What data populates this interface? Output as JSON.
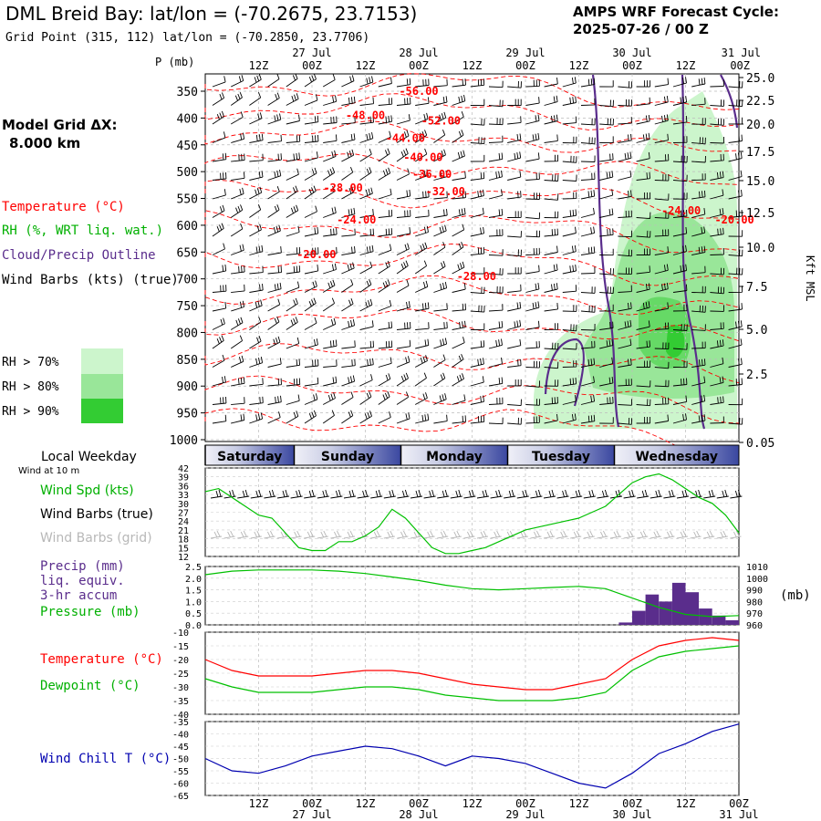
{
  "header": {
    "title": "DML Breid Bay:  lat/lon = (-70.2675, 23.7153)",
    "subtitle": "Grid Point (315, 112) lat/lon = (-70.2850, 23.7706)",
    "cycle_line1": "AMPS WRF Forecast Cycle:",
    "cycle_line2": "2025-07-26 / 00  Z"
  },
  "left_panel": {
    "model_grid_line1": "Model Grid ΔX:",
    "model_grid_line2": "8.000 km",
    "temperature": "Temperature (°C)",
    "rh": "RH (%, WRT liq. wat.)",
    "cloud": "Cloud/Precip Outline",
    "wind_barbs": "Wind Barbs (kts) (true)",
    "rh_legend": [
      "RH > 70%",
      "RH > 80%",
      "RH > 90%"
    ]
  },
  "colors": {
    "temperature": "#ff0000",
    "dewpoint": "#00c000",
    "cloud": "#5a2d8c",
    "wind_chill": "#0000b0",
    "rh70": "#ccf5cc",
    "rh80": "#99e699",
    "rh90": "#33cc33",
    "precip": "#5a2d8c"
  },
  "top_axis": {
    "p_label": "P (mb)",
    "kft_label": "Kft MSL",
    "hours": [
      "12Z",
      "00Z",
      "12Z",
      "00Z",
      "12Z",
      "00Z",
      "12Z",
      "00Z",
      "12Z",
      "00Z"
    ],
    "dates": [
      {
        "after": 1,
        "text": "27 Jul"
      },
      {
        "after": 3,
        "text": "28 Jul"
      },
      {
        "after": 5,
        "text": "29 Jul"
      },
      {
        "after": 7,
        "text": "30 Jul"
      },
      {
        "after": 9,
        "text": "31 Jul"
      }
    ]
  },
  "bottom_axis": {
    "hours": [
      "12Z",
      "00Z",
      "12Z",
      "00Z",
      "12Z",
      "00Z",
      "12Z",
      "00Z",
      "12Z",
      "00Z"
    ],
    "dates": [
      "27 Jul",
      "28 Jul",
      "29 Jul",
      "30 Jul",
      "31 Jul"
    ]
  },
  "weekday": {
    "label": "Local Weekday",
    "sublabel": "Wind at 10 m",
    "days": [
      "Saturday",
      "Sunday",
      "Monday",
      "Tuesday",
      "Wednesday"
    ]
  },
  "wind_panel": {
    "labels": [
      "Wind Spd (kts)",
      "Wind Barbs (true)",
      "Wind Barbs (grid)"
    ]
  },
  "precip_panel": {
    "labels": [
      "Precip (mm)",
      "liq. equiv.",
      "3-hr accum",
      "Pressure (mb)"
    ],
    "right_unit": "(mb)"
  },
  "temp_panel": {
    "labels": [
      "Temperature (°C)",
      "Dewpoint (°C)"
    ]
  },
  "chill_panel": {
    "labels": [
      "Wind Chill T (°C)"
    ]
  },
  "chart_data": [
    {
      "type": "heatmap",
      "name": "time-height cross section",
      "x_range_hours": [
        0,
        120
      ],
      "pressure_ticks": [
        350,
        400,
        450,
        500,
        550,
        600,
        650,
        700,
        750,
        800,
        850,
        900,
        950,
        1000
      ],
      "kft_ticks": [
        "25.0",
        "22.5",
        "20.0",
        "17.5",
        "15.0",
        "12.5",
        "10.0",
        "7.5",
        "5.0",
        "2.5",
        "0.05"
      ],
      "temperature_contour_labels": [
        {
          "text": "-56.00",
          "t": 48,
          "p": 350
        },
        {
          "text": "-48.00",
          "t": 36,
          "p": 395
        },
        {
          "text": "-52.00",
          "t": 53,
          "p": 405
        },
        {
          "text": "-44.00",
          "t": 45,
          "p": 438
        },
        {
          "text": "-40.00",
          "t": 49,
          "p": 473
        },
        {
          "text": "-36.00",
          "t": 51,
          "p": 505
        },
        {
          "text": "-28.00",
          "t": 31,
          "p": 530
        },
        {
          "text": "-32.00",
          "t": 54,
          "p": 537
        },
        {
          "text": "-24.00",
          "t": 107,
          "p": 573
        },
        {
          "text": "-24.00",
          "t": 34,
          "p": 590
        },
        {
          "text": "-20.00",
          "t": 119,
          "p": 590
        },
        {
          "text": "-20.00",
          "t": 25,
          "p": 655
        },
        {
          "text": "-28.00",
          "t": 61,
          "p": 695
        }
      ]
    },
    {
      "type": "line",
      "name": "wind speed",
      "ylabel": "Wind Spd (kts)",
      "ylim": [
        12,
        42
      ],
      "yticks": [
        12,
        15,
        18,
        21,
        24,
        27,
        30,
        33,
        36,
        39,
        42
      ],
      "x": [
        0,
        3,
        6,
        9,
        12,
        15,
        18,
        21,
        24,
        27,
        30,
        33,
        36,
        39,
        42,
        45,
        48,
        51,
        54,
        57,
        60,
        63,
        66,
        69,
        72,
        75,
        78,
        81,
        84,
        87,
        90,
        93,
        96,
        99,
        102,
        105,
        108,
        111,
        114,
        117,
        120
      ],
      "values": [
        34,
        35,
        32,
        29,
        26,
        25,
        20,
        15,
        14,
        14,
        17,
        17,
        19,
        22,
        28,
        25,
        20,
        15,
        13,
        13,
        14,
        15,
        17,
        19,
        21,
        22,
        23,
        24,
        25,
        27,
        29,
        33,
        37,
        39,
        40,
        38,
        35,
        32,
        30,
        26,
        20
      ]
    },
    {
      "type": "bar",
      "name": "precipitation 3-hr",
      "ylabel": "Precip (mm)",
      "ylim": [
        0,
        2.5
      ],
      "yticks": [
        0.0,
        0.5,
        1.0,
        1.5,
        2.0,
        2.5
      ],
      "x": [
        96,
        99,
        102,
        105,
        108,
        111,
        114,
        117,
        120
      ],
      "values": [
        0.1,
        0.6,
        1.3,
        1.0,
        1.8,
        1.4,
        0.7,
        0.4,
        0.2
      ]
    },
    {
      "type": "line",
      "name": "pressure",
      "ylabel": "Pressure (mb)",
      "ylim": [
        960,
        1010
      ],
      "yticks": [
        960,
        970,
        980,
        990,
        1000,
        1010
      ],
      "x": [
        0,
        6,
        12,
        18,
        24,
        30,
        36,
        42,
        48,
        54,
        60,
        66,
        72,
        78,
        84,
        90,
        96,
        102,
        108,
        114,
        120
      ],
      "values": [
        1003,
        1006,
        1007,
        1007,
        1007,
        1006,
        1004,
        1001,
        998,
        994,
        991,
        990,
        991,
        992,
        993,
        991,
        983,
        975,
        969,
        967,
        968
      ]
    },
    {
      "type": "line",
      "name": "temperature and dewpoint",
      "ylim": [
        -40,
        -10
      ],
      "yticks": [
        -40,
        -35,
        -30,
        -25,
        -20,
        -15,
        -10
      ],
      "x": [
        0,
        6,
        12,
        18,
        24,
        30,
        36,
        42,
        48,
        54,
        60,
        66,
        72,
        78,
        84,
        90,
        96,
        102,
        108,
        114,
        120
      ],
      "series": [
        {
          "name": "Temperature (°C)",
          "values": [
            -20,
            -24,
            -26,
            -26,
            -26,
            -25,
            -24,
            -24,
            -25,
            -27,
            -29,
            -30,
            -31,
            -31,
            -29,
            -27,
            -20,
            -15,
            -13,
            -12,
            -13
          ]
        },
        {
          "name": "Dewpoint (°C)",
          "values": [
            -27,
            -30,
            -32,
            -32,
            -32,
            -31,
            -30,
            -30,
            -31,
            -33,
            -34,
            -35,
            -35,
            -35,
            -34,
            -32,
            -24,
            -19,
            -17,
            -16,
            -15
          ]
        }
      ]
    },
    {
      "type": "line",
      "name": "wind chill",
      "ylabel": "Wind Chill T (°C)",
      "ylim": [
        -65,
        -35
      ],
      "yticks": [
        -65,
        -60,
        -55,
        -50,
        -45,
        -40,
        -35
      ],
      "x": [
        0,
        6,
        12,
        18,
        24,
        30,
        36,
        42,
        48,
        54,
        60,
        66,
        72,
        78,
        84,
        90,
        96,
        102,
        108,
        114,
        120
      ],
      "values": [
        -50,
        -55,
        -56,
        -53,
        -49,
        -47,
        -45,
        -46,
        -49,
        -53,
        -49,
        -50,
        -52,
        -56,
        -60,
        -62,
        -56,
        -48,
        -44,
        -39,
        -36
      ]
    }
  ]
}
